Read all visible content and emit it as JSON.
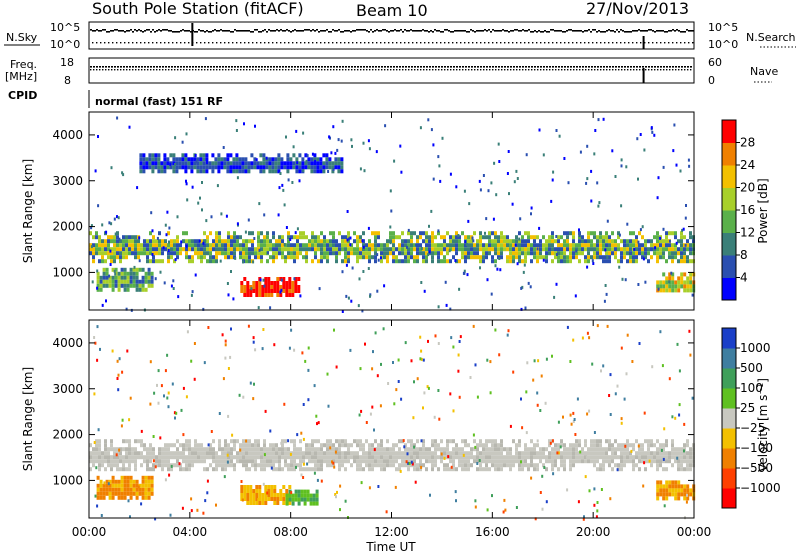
{
  "header": {
    "station": "South Pole Station (fitACF)",
    "beam": "Beam 10",
    "date": "27/Nov/2013"
  },
  "strips": {
    "nsky_label": "N.Sky",
    "nsky_ticks": [
      "10^5",
      "10^0"
    ],
    "nsearch_label": "N.Search",
    "nsearch_ticks": [
      "10^5",
      "10^0"
    ],
    "freq_label_line1": "Freq.",
    "freq_label_line2": "[MHz]",
    "freq_ticks": [
      "18",
      "8"
    ],
    "nave_label": "Nave",
    "nave_ticks": [
      "60",
      "0"
    ],
    "cpid_label": "CPID",
    "cpid_value": "normal (fast) 151 RF"
  },
  "chart_data": [
    {
      "type": "heatmap",
      "name": "power",
      "ylabel": "Slant Range [km]",
      "yticks": [
        1000,
        2000,
        3000,
        4000
      ],
      "ylim": [
        180,
        4500
      ],
      "xlim_hours": [
        0,
        24
      ],
      "colorbar": {
        "label": "Power [dB]",
        "ticks": [
          "4",
          "8",
          "12",
          "16",
          "20",
          "24",
          "28"
        ],
        "colors": [
          "#0000ff",
          "#2a4fb0",
          "#3a7f78",
          "#5ab04a",
          "#a8cf2a",
          "#f3c000",
          "#f08000",
          "#ff0000"
        ]
      },
      "bands": [
        {
          "from_h": 0.0,
          "to_h": 24.0,
          "range_km": [
            1250,
            1900
          ],
          "level": "12-20 dB"
        },
        {
          "from_h": 0.3,
          "to_h": 2.5,
          "range_km": [
            600,
            1100
          ],
          "level": "8-16 dB"
        },
        {
          "from_h": 6.0,
          "to_h": 8.3,
          "range_km": [
            500,
            900
          ],
          "level": "> 28 dB"
        },
        {
          "from_h": 2.0,
          "to_h": 10.0,
          "range_km": [
            3200,
            3600
          ],
          "level": "4-12 dB"
        },
        {
          "from_h": 22.5,
          "to_h": 24.0,
          "range_km": [
            600,
            1000
          ],
          "level": "12-24 dB"
        }
      ]
    },
    {
      "type": "heatmap",
      "name": "velocity",
      "xlabel": "Time UT",
      "ylabel": "Slant Range [km]",
      "yticks": [
        1000,
        2000,
        3000,
        4000
      ],
      "ylim": [
        180,
        4500
      ],
      "xticks": [
        "00:00",
        "04:00",
        "08:00",
        "12:00",
        "16:00",
        "20:00",
        "00:00"
      ],
      "colorbar": {
        "label": "Velocity [m s^-1]",
        "ticks": [
          "1000",
          "500",
          "100",
          "25",
          "−25",
          "−100",
          "−500",
          "−1000"
        ],
        "colors": [
          "#1a3fc8",
          "#3f7ea0",
          "#3f9f5a",
          "#5fc020",
          "#c8c8c0",
          "#f3c000",
          "#f08000",
          "#ff4000",
          "#ff0000"
        ]
      },
      "bands": [
        {
          "from_h": 0.0,
          "to_h": 24.0,
          "range_km": [
            1250,
            1900
          ],
          "level": "-25 to 25 m/s"
        },
        {
          "from_h": 0.3,
          "to_h": 2.5,
          "range_km": [
            600,
            1100
          ],
          "level": "-500 to -100 m/s"
        },
        {
          "from_h": 6.0,
          "to_h": 8.0,
          "range_km": [
            500,
            900
          ],
          "level": "-100 to -25 m/s"
        },
        {
          "from_h": 7.8,
          "to_h": 9.0,
          "range_km": [
            500,
            800
          ],
          "level": "100 to 500 m/s"
        },
        {
          "from_h": 22.5,
          "to_h": 24.0,
          "range_km": [
            600,
            1000
          ],
          "level": "-500 to -100 m/s"
        }
      ]
    }
  ]
}
